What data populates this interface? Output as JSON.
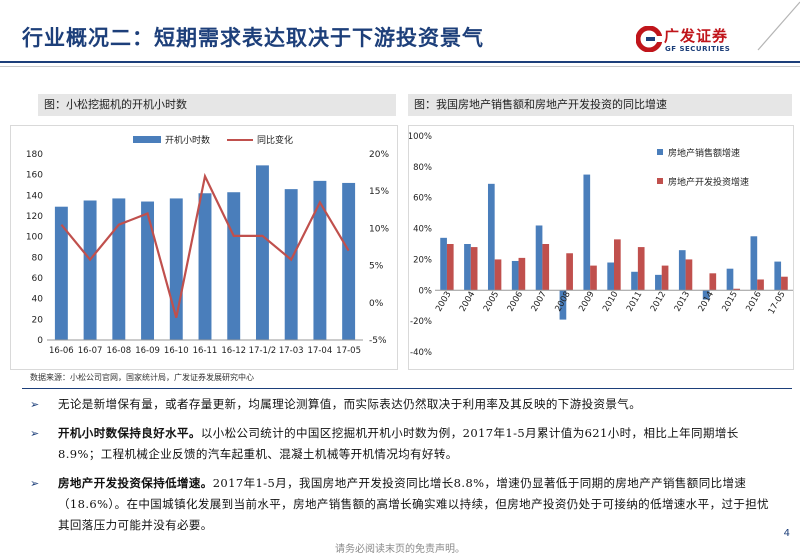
{
  "header": {
    "title": "行业概况二：短期需求表达取决于下游投资景气",
    "logo_name": "广发证券",
    "logo_en": "GF SECURITIES"
  },
  "left_chart_title": "图：小松挖掘机的开机小时数",
  "right_chart_title": "图：我国房地产销售额和房地产开发投资的同比增速",
  "source": "数据来源：小松公司官网，国家统计局，广发证券发展研究中心",
  "bullets": [
    {
      "bold": "",
      "text": "无论是新增保有量，或者存量更新，均属理论测算值，而实际表达仍然取决于利用率及其反映的下游投资景气。"
    },
    {
      "bold": "开机小时数保持良好水平。",
      "text": "以小松公司统计的中国区挖掘机开机小时数为例，2017年1-5月累计值为621小时，相比上年同期增长8.9%；工程机械企业反馈的汽车起重机、混凝土机械等开机情况均有好转。"
    },
    {
      "bold": "房地产开发投资保持低增速。",
      "text": "2017年1-5月，我国房地产开发投资同比增长8.8%，增速仍显著低于同期的房地产产销售额同比增速（18.6%）。在中国城镇化发展到当前水平，房地产销售额的高增长确实难以持续，但房地产投资仍处于可接纳的低增速水平，过于担忧其回落压力可能并没有必要。"
    }
  ],
  "page_number": "4",
  "footer": "请务必阅读末页的免责声明。",
  "chart_data": [
    {
      "type": "bar",
      "categories": [
        "16-06",
        "16-07",
        "16-08",
        "16-09",
        "16-10",
        "16-11",
        "16-12",
        "17-1/2",
        "17-03",
        "17-04",
        "17-05"
      ],
      "series": [
        {
          "name": "开机小时数",
          "type": "bar",
          "axis": "left",
          "values": [
            129,
            135,
            137,
            134,
            137,
            142,
            143,
            169,
            146,
            154,
            152
          ]
        },
        {
          "name": "同比变化",
          "type": "line",
          "axis": "right",
          "values": [
            10.5,
            5.8,
            10.5,
            12,
            -2,
            17,
            9,
            9,
            5.8,
            13.5,
            7
          ]
        }
      ],
      "y_left": {
        "range": [
          0,
          180
        ],
        "ticks": [
          "0",
          "20",
          "40",
          "60",
          "80",
          "100",
          "120",
          "140",
          "160",
          "180"
        ]
      },
      "y_right": {
        "range": [
          -5,
          20
        ],
        "ticks": [
          "-5%",
          "0%",
          "5%",
          "10%",
          "15%",
          "20%"
        ]
      },
      "legend": "top",
      "colors": {
        "bar": "#4a7ebb",
        "line": "#c0504d"
      }
    },
    {
      "type": "bar",
      "categories": [
        "2003",
        "2004",
        "2005",
        "2006",
        "2007",
        "2008",
        "2009",
        "2010",
        "2011",
        "2012",
        "2013",
        "2014",
        "2015",
        "2016",
        "17-05"
      ],
      "series": [
        {
          "name": "房地产销售额增速",
          "values": [
            34,
            30,
            69,
            19,
            42,
            -19,
            75,
            18,
            12,
            10,
            26,
            -6,
            14,
            35,
            18.6
          ]
        },
        {
          "name": "房地产开发投资增速",
          "values": [
            30,
            28,
            20,
            21,
            30,
            24,
            16,
            33,
            28,
            16,
            20,
            11,
            1,
            7,
            8.8
          ]
        }
      ],
      "y_left": {
        "range": [
          -40,
          100
        ],
        "ticks": [
          "-40%",
          "-20%",
          "0%",
          "20%",
          "40%",
          "60%",
          "80%",
          "100%"
        ]
      },
      "legend": "right",
      "colors": {
        "s1": "#4a7ebb",
        "s2": "#c0504d"
      }
    }
  ]
}
